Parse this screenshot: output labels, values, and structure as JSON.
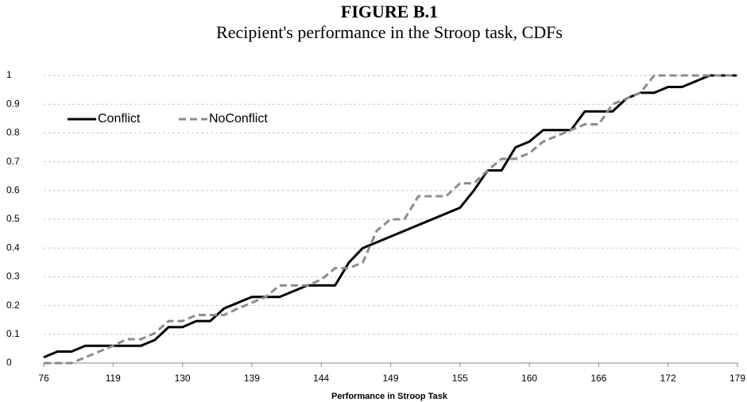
{
  "chart_data": {
    "type": "line",
    "title": "FIGURE B.1",
    "subtitle": "Recipient's performance in the Stroop task, CDFs",
    "x_label": "Performance in Stroop Task",
    "categories": [
      "76",
      null,
      null,
      null,
      null,
      "119",
      null,
      null,
      null,
      null,
      "130",
      null,
      null,
      null,
      null,
      "139",
      null,
      null,
      null,
      null,
      "144",
      null,
      null,
      null,
      null,
      "149",
      null,
      null,
      null,
      null,
      "155",
      null,
      null,
      null,
      null,
      "160",
      null,
      null,
      null,
      null,
      "166",
      null,
      null,
      null,
      null,
      "172",
      null,
      null,
      null,
      null,
      "179"
    ],
    "series": [
      {
        "name": "Conflict",
        "color": "#000000",
        "dash": false,
        "values": [
          0.02,
          0.04,
          0.04,
          0.06,
          0.06,
          0.06,
          0.06,
          0.06,
          0.08,
          0.125,
          0.125,
          0.146,
          0.146,
          0.19,
          0.21,
          0.23,
          0.23,
          0.23,
          0.25,
          0.27,
          0.27,
          0.27,
          0.35,
          0.4,
          0.42,
          0.44,
          0.46,
          0.48,
          0.5,
          0.52,
          0.54,
          0.6,
          0.67,
          0.67,
          0.75,
          0.77,
          0.81,
          0.81,
          0.81,
          0.875,
          0.875,
          0.875,
          0.92,
          0.94,
          0.94,
          0.96,
          0.96,
          0.98,
          1,
          1,
          1
        ]
      },
      {
        "name": "NoConflict",
        "color": "#8c8c8c",
        "dash": true,
        "values": [
          0,
          0,
          0,
          0.02,
          0.04,
          0.06,
          0.083,
          0.083,
          0.104,
          0.146,
          0.146,
          0.167,
          0.167,
          0.167,
          0.19,
          0.21,
          0.23,
          0.27,
          0.27,
          0.27,
          0.29,
          0.33,
          0.33,
          0.35,
          0.46,
          0.5,
          0.5,
          0.58,
          0.58,
          0.58,
          0.625,
          0.625,
          0.67,
          0.71,
          0.71,
          0.73,
          0.77,
          0.79,
          0.81,
          0.83,
          0.83,
          0.9,
          0.92,
          0.94,
          1,
          1,
          1,
          1,
          1,
          1,
          1
        ]
      }
    ],
    "ylim": [
      0,
      1
    ],
    "yticks": [
      0,
      0.1,
      0.2,
      0.3,
      0.4,
      0.5,
      0.6,
      0.7,
      0.8,
      0.9,
      1
    ],
    "grid": true,
    "legend": "top-left"
  }
}
